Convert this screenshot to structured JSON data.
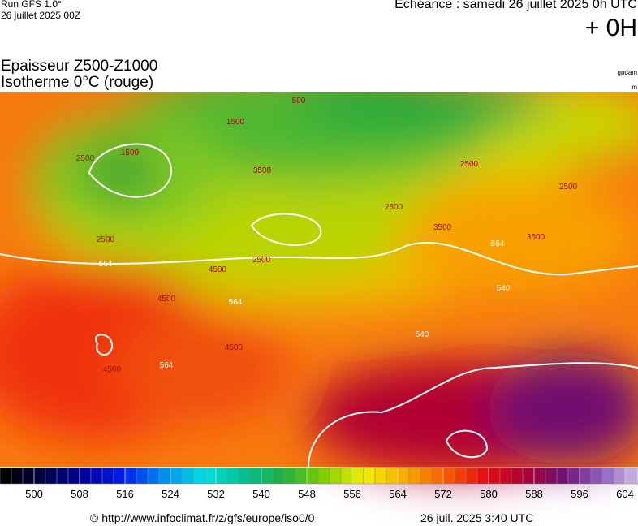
{
  "header": {
    "run": "Run GFS 1.0°",
    "run_date": "26 juillet 2025 00Z",
    "echeance": "Echéance : samedi 26 juillet 2025 0h UTC",
    "offset": "+ 0H",
    "title": "Epaisseur Z500-Z1000",
    "subtitle": "Isotherme 0°C (rouge)",
    "unit1": "gpdam",
    "unit2": "m"
  },
  "map": {
    "labels": [
      "500",
      "1500",
      "1500",
      "2500",
      "2500",
      "2500",
      "2500",
      "2500",
      "2500",
      "3500",
      "3500",
      "3500",
      "4500",
      "4500",
      "4500",
      "4500",
      "564",
      "564",
      "564",
      "564",
      "540",
      "540"
    ]
  },
  "colorbar": {
    "ticks": [
      500,
      508,
      516,
      524,
      532,
      540,
      548,
      556,
      564,
      572,
      580,
      588,
      596,
      604
    ],
    "colors": [
      "#000000",
      "#00004a",
      "#0000a0",
      "#0020f0",
      "#0090f0",
      "#00e0e0",
      "#00c090",
      "#20b040",
      "#80d000",
      "#f0f000",
      "#f8b000",
      "#f86000",
      "#e81010",
      "#b00030",
      "#701070",
      "#9060c0",
      "#d8c8e8"
    ]
  },
  "footer": {
    "url": "© http://www.infoclimat.fr/z/gfs/europe/iso0/0",
    "date": "26 juil. 2025  3:40 UTC"
  }
}
